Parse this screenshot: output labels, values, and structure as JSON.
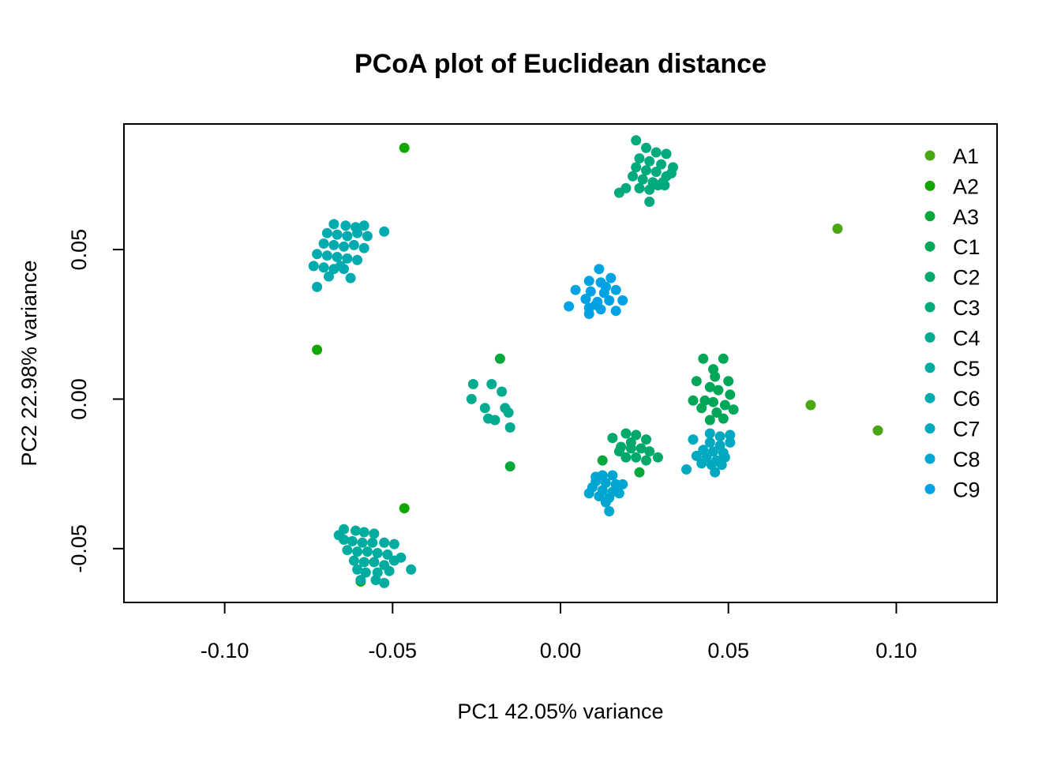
{
  "chart_data": {
    "type": "scatter",
    "title": "PCoA plot of Euclidean distance",
    "xlabel": "PC1  42.05% variance",
    "ylabel": "PC2  22.98% variance",
    "xlim": [
      -0.13,
      0.13
    ],
    "ylim": [
      -0.068,
      0.092
    ],
    "x_ticks": [
      -0.1,
      -0.05,
      0.0,
      0.05,
      0.1
    ],
    "x_tick_labels": [
      "-0.10",
      "-0.05",
      "0.00",
      "0.05",
      "0.10"
    ],
    "y_ticks": [
      -0.05,
      0.0,
      0.05
    ],
    "y_tick_labels": [
      "-0.05",
      "0.00",
      "0.05"
    ],
    "grid": false,
    "legend_position": "top-right",
    "series": [
      {
        "name": "A1",
        "color": "#4AA613",
        "points": [
          [
            0.0825,
            0.057
          ],
          [
            0.0745,
            -0.002
          ],
          [
            0.0945,
            -0.0105
          ]
        ]
      },
      {
        "name": "A2",
        "color": "#12A601",
        "points": [
          [
            -0.0465,
            0.084
          ],
          [
            -0.0725,
            0.0165
          ],
          [
            -0.0465,
            -0.0365
          ],
          [
            -0.0595,
            -0.061
          ]
        ]
      },
      {
        "name": "A3",
        "color": "#07A83B",
        "points": [
          [
            -0.018,
            0.0135
          ],
          [
            -0.015,
            -0.0225
          ],
          [
            0.0125,
            -0.0205
          ],
          [
            0.0235,
            -0.0245
          ]
        ]
      },
      {
        "name": "C1",
        "color": "#00A758",
        "points": [
          [
            0.0425,
            0.0135
          ],
          [
            0.0485,
            0.0135
          ],
          [
            0.0455,
            0.01
          ],
          [
            0.0405,
            0.006
          ],
          [
            0.0445,
            0.004
          ],
          [
            0.047,
            0.003
          ],
          [
            0.0505,
            0.0015
          ],
          [
            0.043,
            -0.0005
          ],
          [
            0.0455,
            -0.001
          ],
          [
            0.049,
            -0.002
          ],
          [
            0.0465,
            -0.0045
          ],
          [
            0.0515,
            -0.0035
          ],
          [
            0.042,
            -0.003
          ],
          [
            0.0445,
            -0.007
          ],
          [
            0.0485,
            -0.0065
          ],
          [
            0.046,
            0.0075
          ],
          [
            0.05,
            0.006
          ],
          [
            0.0395,
            -0.0005
          ]
        ]
      },
      {
        "name": "C2",
        "color": "#00A96A",
        "points": [
          [
            0.0155,
            -0.013
          ],
          [
            0.0195,
            -0.0115
          ],
          [
            0.0225,
            -0.012
          ],
          [
            0.0255,
            -0.0135
          ],
          [
            0.018,
            -0.016
          ],
          [
            0.021,
            -0.0165
          ],
          [
            0.024,
            -0.0165
          ],
          [
            0.0265,
            -0.0175
          ],
          [
            0.0195,
            -0.0195
          ],
          [
            0.0225,
            -0.0195
          ],
          [
            0.029,
            -0.0195
          ],
          [
            0.0175,
            -0.0175
          ],
          [
            0.0255,
            -0.0205
          ],
          [
            0.021,
            -0.0145
          ]
        ]
      },
      {
        "name": "C3",
        "color": "#00AA7D",
        "points": [
          [
            0.0225,
            0.0865
          ],
          [
            0.0255,
            0.084
          ],
          [
            0.0285,
            0.0825
          ],
          [
            0.0315,
            0.082
          ],
          [
            0.0235,
            0.0805
          ],
          [
            0.0265,
            0.0795
          ],
          [
            0.03,
            0.0785
          ],
          [
            0.0335,
            0.0775
          ],
          [
            0.0225,
            0.0775
          ],
          [
            0.0255,
            0.0765
          ],
          [
            0.0285,
            0.076
          ],
          [
            0.0315,
            0.0745
          ],
          [
            0.0215,
            0.0745
          ],
          [
            0.0245,
            0.0735
          ],
          [
            0.0275,
            0.0725
          ],
          [
            0.031,
            0.0715
          ],
          [
            0.0235,
            0.0705
          ],
          [
            0.0265,
            0.07
          ],
          [
            0.0195,
            0.0705
          ],
          [
            0.0175,
            0.069
          ],
          [
            0.0305,
            0.0725
          ],
          [
            0.0265,
            0.066
          ],
          [
            0.033,
            0.0755
          ],
          [
            0.029,
            0.0715
          ]
        ]
      },
      {
        "name": "C4",
        "color": "#00AB8F",
        "points": [
          [
            -0.026,
            0.005
          ],
          [
            -0.0205,
            0.005
          ],
          [
            -0.0175,
            0.0025
          ],
          [
            -0.0265,
            0.0
          ],
          [
            -0.0225,
            -0.003
          ],
          [
            -0.0165,
            -0.003
          ],
          [
            -0.0215,
            -0.0065
          ],
          [
            -0.0155,
            -0.0045
          ],
          [
            -0.0195,
            -0.007
          ],
          [
            -0.015,
            -0.0095
          ]
        ]
      },
      {
        "name": "C5",
        "color": "#00ABA0",
        "points": [
          [
            -0.0645,
            -0.0435
          ],
          [
            -0.061,
            -0.044
          ],
          [
            -0.0585,
            -0.0445
          ],
          [
            -0.0555,
            -0.045
          ],
          [
            -0.0645,
            -0.047
          ],
          [
            -0.062,
            -0.0475
          ],
          [
            -0.059,
            -0.048
          ],
          [
            -0.056,
            -0.048
          ],
          [
            -0.0525,
            -0.048
          ],
          [
            -0.0495,
            -0.0485
          ],
          [
            -0.0635,
            -0.0505
          ],
          [
            -0.0605,
            -0.051
          ],
          [
            -0.0575,
            -0.051
          ],
          [
            -0.0545,
            -0.0515
          ],
          [
            -0.0515,
            -0.052
          ],
          [
            -0.0615,
            -0.054
          ],
          [
            -0.0585,
            -0.0545
          ],
          [
            -0.0555,
            -0.0545
          ],
          [
            -0.0525,
            -0.0555
          ],
          [
            -0.0495,
            -0.054
          ],
          [
            -0.0605,
            -0.057
          ],
          [
            -0.058,
            -0.058
          ],
          [
            -0.0545,
            -0.058
          ],
          [
            -0.051,
            -0.0575
          ],
          [
            -0.0445,
            -0.057
          ],
          [
            -0.0475,
            -0.053
          ],
          [
            -0.0595,
            -0.0605
          ],
          [
            -0.055,
            -0.0605
          ],
          [
            -0.0525,
            -0.0615
          ],
          [
            -0.066,
            -0.0455
          ]
        ]
      },
      {
        "name": "C6",
        "color": "#00ABB0",
        "points": [
          [
            -0.0675,
            0.0585
          ],
          [
            -0.064,
            0.058
          ],
          [
            -0.061,
            0.0575
          ],
          [
            -0.0585,
            0.058
          ],
          [
            -0.0695,
            0.0555
          ],
          [
            -0.0665,
            0.055
          ],
          [
            -0.0635,
            0.0545
          ],
          [
            -0.0605,
            0.0555
          ],
          [
            -0.0575,
            0.0545
          ],
          [
            -0.0705,
            0.052
          ],
          [
            -0.0675,
            0.0515
          ],
          [
            -0.0645,
            0.051
          ],
          [
            -0.0615,
            0.0515
          ],
          [
            -0.0585,
            0.0505
          ],
          [
            -0.0725,
            0.0485
          ],
          [
            -0.0695,
            0.048
          ],
          [
            -0.0665,
            0.0475
          ],
          [
            -0.0635,
            0.047
          ],
          [
            -0.0605,
            0.0465
          ],
          [
            -0.0735,
            0.0445
          ],
          [
            -0.0705,
            0.044
          ],
          [
            -0.0675,
            0.0435
          ],
          [
            -0.0645,
            0.0435
          ],
          [
            -0.0625,
            0.0405
          ],
          [
            -0.0725,
            0.0375
          ],
          [
            -0.0525,
            0.056
          ],
          [
            -0.069,
            0.041
          ],
          [
            -0.0655,
            0.0445
          ]
        ]
      },
      {
        "name": "C7",
        "color": "#00A9C0",
        "points": [
          [
            0.0475,
            -0.0125
          ],
          [
            0.0505,
            -0.012
          ],
          [
            0.0445,
            -0.0145
          ],
          [
            0.0475,
            -0.0155
          ],
          [
            0.0505,
            -0.0145
          ],
          [
            0.0425,
            -0.017
          ],
          [
            0.0455,
            -0.0175
          ],
          [
            0.0485,
            -0.018
          ],
          [
            0.0405,
            -0.019
          ],
          [
            0.0435,
            -0.0195
          ],
          [
            0.0465,
            -0.0205
          ],
          [
            0.049,
            -0.0195
          ],
          [
            0.042,
            -0.0215
          ],
          [
            0.045,
            -0.022
          ],
          [
            0.048,
            -0.022
          ],
          [
            0.0375,
            -0.0235
          ],
          [
            0.046,
            -0.0245
          ],
          [
            0.0395,
            -0.0135
          ],
          [
            0.0445,
            -0.0115
          ]
        ]
      },
      {
        "name": "C8",
        "color": "#00A6D2",
        "points": [
          [
            0.0125,
            -0.0255
          ],
          [
            0.0155,
            -0.0255
          ],
          [
            0.0105,
            -0.0275
          ],
          [
            0.0135,
            -0.028
          ],
          [
            0.0165,
            -0.0285
          ],
          [
            0.0095,
            -0.0295
          ],
          [
            0.0125,
            -0.0305
          ],
          [
            0.0155,
            -0.031
          ],
          [
            0.0185,
            -0.0285
          ],
          [
            0.0085,
            -0.0315
          ],
          [
            0.0115,
            -0.0325
          ],
          [
            0.0145,
            -0.033
          ],
          [
            0.0175,
            -0.0315
          ],
          [
            0.0135,
            -0.0345
          ],
          [
            0.0145,
            -0.0375
          ],
          [
            0.0105,
            -0.026
          ]
        ]
      },
      {
        "name": "C9",
        "color": "#00A2E3",
        "points": [
          [
            0.0115,
            0.0435
          ],
          [
            0.0085,
            0.0395
          ],
          [
            0.012,
            0.039
          ],
          [
            0.015,
            0.0405
          ],
          [
            0.0045,
            0.0365
          ],
          [
            0.009,
            0.036
          ],
          [
            0.013,
            0.0355
          ],
          [
            0.0165,
            0.0365
          ],
          [
            0.0075,
            0.0335
          ],
          [
            0.011,
            0.0325
          ],
          [
            0.0145,
            0.033
          ],
          [
            0.0185,
            0.033
          ],
          [
            0.0025,
            0.031
          ],
          [
            0.0085,
            0.0305
          ],
          [
            0.012,
            0.03
          ],
          [
            0.0165,
            0.0295
          ],
          [
            0.0085,
            0.0285
          ],
          [
            0.0105,
            0.0315
          ],
          [
            0.0135,
            0.0375
          ]
        ]
      }
    ]
  }
}
